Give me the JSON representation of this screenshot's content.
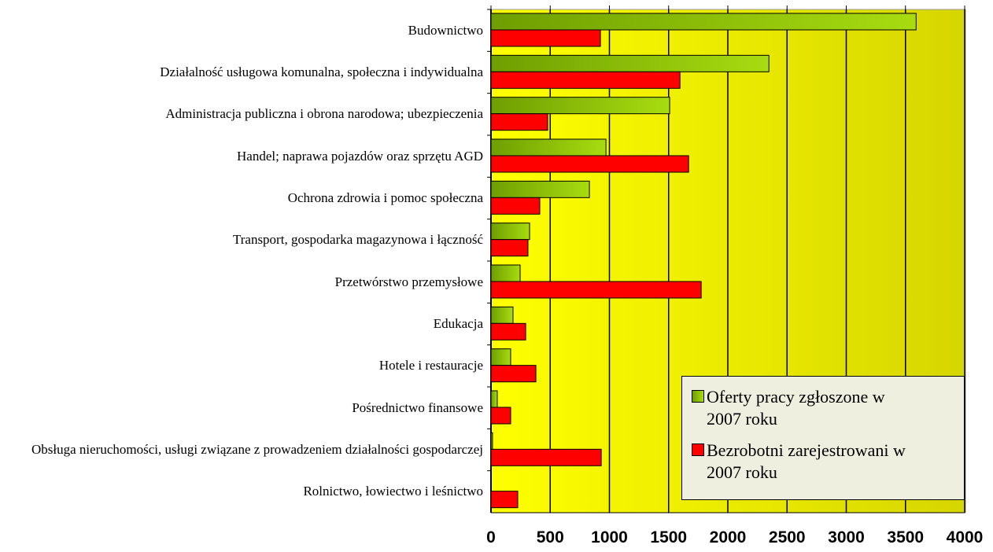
{
  "chart_data": {
    "type": "barh",
    "categories": [
      "Budownictwo",
      "Działalność usługowa komunalna, społeczna i indywidualna",
      "Administracja publiczna i obrona narodowa;  ubezpieczenia",
      "Handel; naprawa pojazdów oraz sprzętu AGD",
      "Ochrona zdrowia i pomoc społeczna",
      "Transport, gospodarka magazynowa i łączność",
      "Przetwórstwo przemysłowe",
      "Edukacja",
      "Hotele i restauracje",
      "Pośrednictwo finansowe",
      "Obsługa nieruchomości, usługi związane z prowadzeniem działalności gospodarczej",
      "Rolnictwo, łowiectwo i leśnictwo"
    ],
    "series": [
      {
        "name": "Oferty pracy zgłoszone w 2007 roku",
        "color": "#8cbf00",
        "values": [
          3590,
          2347,
          1509,
          971,
          831,
          326,
          246,
          186,
          166,
          53,
          13,
          0
        ]
      },
      {
        "name": "Bezrobotni zarejestrowani w 2007 roku",
        "color": "#ff0000",
        "values": [
          924,
          1596,
          479,
          1669,
          412,
          312,
          1775,
          293,
          379,
          166,
          931,
          226
        ]
      }
    ],
    "xlim": [
      0,
      4000
    ],
    "xticks": [
      0,
      500,
      1000,
      1500,
      2000,
      2500,
      3000,
      3500,
      4000
    ],
    "grid": true,
    "legend": "lower right"
  }
}
